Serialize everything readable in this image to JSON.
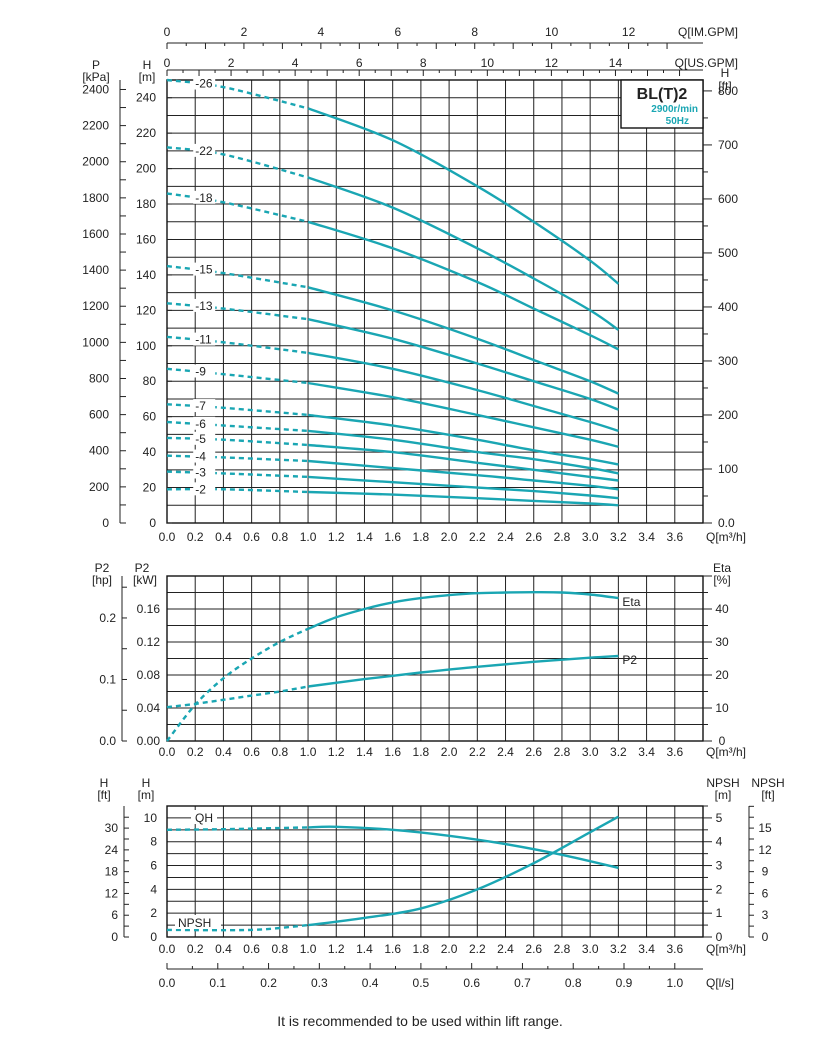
{
  "model_box": {
    "model": "BL(T)2",
    "speed": "2900r/min",
    "freq": "50Hz"
  },
  "caption": "It is recommended to be used within lift range.",
  "colors": {
    "curve": "#1aa6b3",
    "grid": "#222222",
    "frame": "#111111"
  },
  "chart_data": [
    {
      "type": "line",
      "panel": "QH performance curves by stage",
      "x_units": "Q[m³/h]",
      "xlim": [
        0,
        3.8
      ],
      "x_ticks": [
        0.0,
        0.2,
        0.4,
        0.6,
        0.8,
        1.0,
        1.2,
        1.4,
        1.6,
        1.8,
        2.0,
        2.2,
        2.4,
        2.6,
        2.8,
        3.0,
        3.2,
        3.4,
        3.6
      ],
      "x_tick_labels": [
        "0.0",
        "0.2",
        "0.4",
        "0.6",
        "0.8",
        "1.0",
        "1.2",
        "1.4",
        "1.6",
        "1.8",
        "2.0",
        "2.2",
        "2.4",
        "2.6",
        "2.8",
        "3.0",
        "3.2",
        "3.4",
        "3.6"
      ],
      "top_axis_im": {
        "label": "Q[IM.GPM]",
        "values": [
          0,
          2,
          4,
          6,
          8,
          10,
          12
        ],
        "labels": [
          "0",
          "2",
          "4",
          "6",
          "8",
          "10",
          "12"
        ]
      },
      "top_axis_us": {
        "label": "Q[US.GPM]",
        "values": [
          0,
          2,
          4,
          6,
          8,
          10,
          12,
          14
        ],
        "labels": [
          "0",
          "2",
          "4",
          "6",
          "8",
          "10",
          "12",
          "14"
        ]
      },
      "left_axis_p": {
        "label": "P",
        "unit": "[kPa]",
        "values": [
          0,
          200,
          400,
          600,
          800,
          1000,
          1200,
          1400,
          1600,
          1800,
          2000,
          2200,
          2400
        ],
        "labels": [
          "0",
          "200",
          "400",
          "600",
          "800",
          "1000",
          "1200",
          "1400",
          "1600",
          "1800",
          "2000",
          "2200",
          "2400"
        ]
      },
      "left_axis_h": {
        "label": "H",
        "unit": "[m]",
        "values": [
          0,
          20,
          40,
          60,
          80,
          100,
          120,
          140,
          160,
          180,
          200,
          220,
          240
        ],
        "labels": [
          "0",
          "20",
          "40",
          "60",
          "80",
          "100",
          "120",
          "140",
          "160",
          "180",
          "200",
          "220",
          "240"
        ]
      },
      "right_axis_ft": {
        "label": "H",
        "unit": "[ft]",
        "values": [
          0,
          100,
          200,
          300,
          400,
          500,
          600,
          700,
          800
        ],
        "labels": [
          "0.0",
          "100",
          "200",
          "300",
          "400",
          "500",
          "600",
          "700",
          "800"
        ]
      },
      "ylim_m": [
        0,
        250
      ],
      "dashed_until_q": 1.0,
      "series": [
        {
          "name": "-26",
          "values": [
            [
              0,
              250
            ],
            [
              0.4,
              246
            ],
            [
              1.0,
              234
            ],
            [
              1.6,
              216
            ],
            [
              2.2,
              190
            ],
            [
              2.6,
              170
            ],
            [
              3.0,
              148
            ],
            [
              3.2,
              135
            ]
          ]
        },
        {
          "name": "-22",
          "values": [
            [
              0,
              212
            ],
            [
              0.4,
              208
            ],
            [
              1.0,
              195
            ],
            [
              1.6,
              178
            ],
            [
              2.2,
              155
            ],
            [
              2.6,
              138
            ],
            [
              3.0,
              120
            ],
            [
              3.2,
              109
            ]
          ]
        },
        {
          "name": "-18",
          "values": [
            [
              0,
              186
            ],
            [
              0.4,
              181
            ],
            [
              1.0,
              170
            ],
            [
              1.6,
              155
            ],
            [
              2.2,
              136
            ],
            [
              2.6,
              121
            ],
            [
              3.0,
              106
            ],
            [
              3.2,
              98
            ]
          ]
        },
        {
          "name": "-15",
          "values": [
            [
              0,
              145
            ],
            [
              0.4,
              141
            ],
            [
              1.0,
              133
            ],
            [
              1.6,
              120
            ],
            [
              2.2,
              104
            ],
            [
              2.6,
              92
            ],
            [
              3.0,
              80
            ],
            [
              3.2,
              73
            ]
          ]
        },
        {
          "name": "-13",
          "values": [
            [
              0,
              124
            ],
            [
              0.4,
              121
            ],
            [
              1.0,
              115
            ],
            [
              1.6,
              104
            ],
            [
              2.2,
              90
            ],
            [
              2.6,
              80
            ],
            [
              3.0,
              70
            ],
            [
              3.2,
              64
            ]
          ]
        },
        {
          "name": "-11",
          "values": [
            [
              0,
              105
            ],
            [
              0.4,
              102
            ],
            [
              1.0,
              96
            ],
            [
              1.6,
              87
            ],
            [
              2.2,
              75
            ],
            [
              2.6,
              66
            ],
            [
              3.0,
              57
            ],
            [
              3.2,
              52
            ]
          ]
        },
        {
          "name": "-9",
          "values": [
            [
              0,
              87
            ],
            [
              0.4,
              84
            ],
            [
              1.0,
              79
            ],
            [
              1.6,
              71
            ],
            [
              2.2,
              61
            ],
            [
              2.6,
              54
            ],
            [
              3.0,
              47
            ],
            [
              3.2,
              43
            ]
          ]
        },
        {
          "name": "-7",
          "values": [
            [
              0,
              67
            ],
            [
              0.4,
              65
            ],
            [
              1.0,
              61
            ],
            [
              1.6,
              55
            ],
            [
              2.2,
              47
            ],
            [
              2.6,
              41
            ],
            [
              3.0,
              36
            ],
            [
              3.2,
              33
            ]
          ]
        },
        {
          "name": "-6",
          "values": [
            [
              0,
              57
            ],
            [
              0.4,
              55
            ],
            [
              1.0,
              52
            ],
            [
              1.6,
              47
            ],
            [
              2.2,
              40
            ],
            [
              2.6,
              36
            ],
            [
              3.0,
              31
            ],
            [
              3.2,
              28
            ]
          ]
        },
        {
          "name": "-5",
          "values": [
            [
              0,
              48
            ],
            [
              0.4,
              47
            ],
            [
              1.0,
              44
            ],
            [
              1.6,
              40
            ],
            [
              2.2,
              34
            ],
            [
              2.6,
              30
            ],
            [
              3.0,
              26
            ],
            [
              3.2,
              24
            ]
          ]
        },
        {
          "name": "-4",
          "values": [
            [
              0,
              38
            ],
            [
              0.4,
              37
            ],
            [
              1.0,
              35
            ],
            [
              1.6,
              31
            ],
            [
              2.2,
              27
            ],
            [
              2.6,
              24
            ],
            [
              3.0,
              21
            ],
            [
              3.2,
              19
            ]
          ]
        },
        {
          "name": "-3",
          "values": [
            [
              0,
              29
            ],
            [
              0.4,
              28
            ],
            [
              1.0,
              26
            ],
            [
              1.6,
              23
            ],
            [
              2.2,
              20
            ],
            [
              2.6,
              18
            ],
            [
              3.0,
              15.5
            ],
            [
              3.2,
              14
            ]
          ]
        },
        {
          "name": "-2",
          "values": [
            [
              0,
              19
            ],
            [
              0.4,
              19
            ],
            [
              1.0,
              17.5
            ],
            [
              1.6,
              16
            ],
            [
              2.2,
              14
            ],
            [
              2.6,
              12.5
            ],
            [
              3.0,
              11
            ],
            [
              3.2,
              10
            ]
          ]
        }
      ]
    },
    {
      "type": "line",
      "panel": "Power and efficiency",
      "x_units": "Q[m³/h]",
      "xlim": [
        0,
        3.8
      ],
      "x_ticks": [
        0.0,
        0.2,
        0.4,
        0.6,
        0.8,
        1.0,
        1.2,
        1.4,
        1.6,
        1.8,
        2.0,
        2.2,
        2.4,
        2.6,
        2.8,
        3.0,
        3.2,
        3.4,
        3.6
      ],
      "x_tick_labels": [
        "0.0",
        "0.2",
        "0.4",
        "0.6",
        "0.8",
        "1.0",
        "1.2",
        "1.4",
        "1.6",
        "1.8",
        "2.0",
        "2.2",
        "2.4",
        "2.6",
        "2.8",
        "3.0",
        "3.2",
        "3.4",
        "3.6"
      ],
      "left_axis_hp": {
        "label": "P2",
        "unit": "[hp]",
        "values": [
          0,
          0.1,
          0.2
        ],
        "labels": [
          "0.0",
          "0.1",
          "0.2"
        ]
      },
      "left_axis_kw": {
        "label": "P2",
        "unit": "[kW]",
        "values": [
          0,
          0.04,
          0.08,
          0.12,
          0.16
        ],
        "labels": [
          "0.00",
          "0.04",
          "0.08",
          "0.12",
          "0.16"
        ]
      },
      "right_axis_eta": {
        "label": "Eta",
        "unit": "[%]",
        "values": [
          0,
          10,
          20,
          30,
          40
        ],
        "labels": [
          "0",
          "10",
          "20",
          "30",
          "40"
        ]
      },
      "ylim_kw": [
        0,
        0.2
      ],
      "dashed_until_q": 1.0,
      "series": [
        {
          "name": "Eta",
          "axis": "eta",
          "values": [
            [
              0,
              0
            ],
            [
              0.2,
              11
            ],
            [
              0.4,
              19
            ],
            [
              0.6,
              25
            ],
            [
              0.8,
              30
            ],
            [
              1.0,
              34
            ],
            [
              1.2,
              37.5
            ],
            [
              1.4,
              40
            ],
            [
              1.6,
              42
            ],
            [
              1.8,
              43.3
            ],
            [
              2.0,
              44.2
            ],
            [
              2.2,
              44.8
            ],
            [
              2.4,
              45
            ],
            [
              2.6,
              45.1
            ],
            [
              2.8,
              45
            ],
            [
              3.0,
              44.4
            ],
            [
              3.2,
              43.3
            ]
          ]
        },
        {
          "name": "P2",
          "axis": "kw",
          "values": [
            [
              0,
              0.041
            ],
            [
              0.2,
              0.045
            ],
            [
              0.4,
              0.05
            ],
            [
              0.6,
              0.055
            ],
            [
              0.8,
              0.06
            ],
            [
              1.0,
              0.066
            ],
            [
              1.4,
              0.075
            ],
            [
              1.8,
              0.083
            ],
            [
              2.2,
              0.09
            ],
            [
              2.6,
              0.096
            ],
            [
              3.0,
              0.101
            ],
            [
              3.2,
              0.103
            ]
          ]
        }
      ]
    },
    {
      "type": "line",
      "panel": "Single stage QH and NPSH",
      "x_units": "Q[m³/h]",
      "xlim": [
        0,
        3.8
      ],
      "x_ticks": [
        0.0,
        0.2,
        0.4,
        0.6,
        0.8,
        1.0,
        1.2,
        1.4,
        1.6,
        1.8,
        2.0,
        2.2,
        2.4,
        2.6,
        2.8,
        3.0,
        3.2,
        3.4,
        3.6
      ],
      "x_tick_labels": [
        "0.0",
        "0.2",
        "0.4",
        "0.6",
        "0.8",
        "1.0",
        "1.2",
        "1.4",
        "1.6",
        "1.8",
        "2.0",
        "2.2",
        "2.4",
        "2.6",
        "2.8",
        "3.0",
        "3.2",
        "3.4",
        "3.6"
      ],
      "ls_axis": {
        "label": "Q[l/s]",
        "values": [
          0,
          0.1,
          0.2,
          0.3,
          0.4,
          0.5,
          0.6,
          0.7,
          0.8,
          0.9,
          1.0
        ],
        "labels": [
          "0.0",
          "0.1",
          "0.2",
          "0.3",
          "0.4",
          "0.5",
          "0.6",
          "0.7",
          "0.8",
          "0.9",
          "1.0"
        ]
      },
      "left_axis_ft": {
        "label": "H",
        "unit": "[ft]",
        "values": [
          0,
          6,
          12,
          18,
          24,
          30
        ],
        "labels": [
          "0",
          "6",
          "12",
          "18",
          "24",
          "30"
        ]
      },
      "left_axis_m": {
        "label": "H",
        "unit": "[m]",
        "values": [
          0,
          2,
          4,
          6,
          8,
          10
        ],
        "labels": [
          "0",
          "2",
          "4",
          "6",
          "8",
          "10"
        ]
      },
      "right_axis_npsh_m": {
        "label": "NPSH",
        "unit": "[m]",
        "values": [
          0,
          1,
          2,
          3,
          4,
          5
        ],
        "labels": [
          "0",
          "1",
          "2",
          "3",
          "4",
          "5"
        ]
      },
      "right_axis_npsh_ft": {
        "label": "NPSH",
        "unit": "[ft]",
        "values": [
          0,
          3,
          6,
          9,
          12,
          15
        ],
        "labels": [
          "0",
          "3",
          "6",
          "9",
          "12",
          "15"
        ]
      },
      "ylim_m": [
        0,
        11
      ],
      "dashed_until_q": 1.0,
      "series": [
        {
          "name": "QH",
          "values": [
            [
              0,
              9.0
            ],
            [
              0.4,
              9.05
            ],
            [
              1.0,
              9.2
            ],
            [
              1.2,
              9.25
            ],
            [
              1.6,
              9.0
            ],
            [
              2.0,
              8.5
            ],
            [
              2.4,
              7.8
            ],
            [
              2.8,
              6.9
            ],
            [
              3.2,
              5.8
            ]
          ]
        },
        {
          "name": "NPSH",
          "values": [
            [
              0,
              0.3
            ],
            [
              0.6,
              0.3
            ],
            [
              1.0,
              0.5
            ],
            [
              1.4,
              0.8
            ],
            [
              1.8,
              1.2
            ],
            [
              2.2,
              2.0
            ],
            [
              2.6,
              3.1
            ],
            [
              3.0,
              4.4
            ],
            [
              3.2,
              5.05
            ]
          ]
        }
      ]
    }
  ]
}
